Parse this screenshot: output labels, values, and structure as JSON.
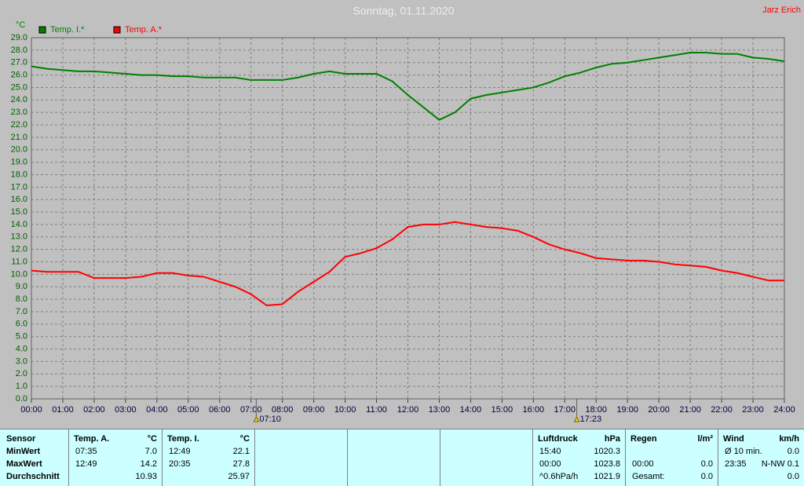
{
  "chart_data": {
    "type": "line",
    "title": "Sonntag, 01.11.2020",
    "author": "Jarz Erich",
    "y_label": "°C",
    "x": [
      0,
      0.5,
      1,
      1.5,
      2,
      2.5,
      3,
      3.5,
      4,
      4.5,
      5,
      5.5,
      6,
      6.5,
      7,
      7.5,
      8,
      8.5,
      9,
      9.5,
      10,
      10.5,
      11,
      11.5,
      12,
      12.5,
      13,
      13.5,
      14,
      14.5,
      15,
      15.5,
      16,
      16.5,
      17,
      17.5,
      18,
      18.5,
      19,
      19.5,
      20,
      20.5,
      21,
      21.5,
      22,
      22.5,
      23,
      23.5,
      24
    ],
    "series": [
      {
        "name": "Temp. I.*",
        "color": "#008000",
        "values": [
          26.7,
          26.5,
          26.4,
          26.3,
          26.3,
          26.2,
          26.1,
          26.0,
          26.0,
          25.9,
          25.9,
          25.8,
          25.8,
          25.8,
          25.6,
          25.6,
          25.6,
          25.8,
          26.1,
          26.3,
          26.1,
          26.1,
          26.1,
          25.5,
          24.4,
          23.4,
          22.4,
          23.0,
          24.1,
          24.4,
          24.6,
          24.8,
          25.0,
          25.4,
          25.9,
          26.2,
          26.6,
          26.9,
          27.0,
          27.2,
          27.4,
          27.6,
          27.8,
          27.8,
          27.7,
          27.7,
          27.4,
          27.3,
          27.1
        ]
      },
      {
        "name": "Temp. A.*",
        "color": "#ff0000",
        "values": [
          10.3,
          10.2,
          10.2,
          10.2,
          9.7,
          9.7,
          9.7,
          9.8,
          10.1,
          10.1,
          9.9,
          9.8,
          9.4,
          9.0,
          8.4,
          7.5,
          7.6,
          8.6,
          9.4,
          10.2,
          11.4,
          11.7,
          12.1,
          12.8,
          13.8,
          14.0,
          14.0,
          14.2,
          14.0,
          13.8,
          13.7,
          13.5,
          13.0,
          12.4,
          12.0,
          11.7,
          11.3,
          11.2,
          11.1,
          11.1,
          11.0,
          10.8,
          10.7,
          10.6,
          10.3,
          10.1,
          9.8,
          9.5,
          9.5
        ]
      }
    ],
    "xlim": [
      0,
      24
    ],
    "ylim": [
      0,
      29
    ],
    "grid": true,
    "xticks": [
      {
        "value": 0,
        "label": "00:00"
      },
      {
        "value": 1,
        "label": "01:00"
      },
      {
        "value": 2,
        "label": "02:00"
      },
      {
        "value": 3,
        "label": "03:00"
      },
      {
        "value": 4,
        "label": "04:00"
      },
      {
        "value": 5,
        "label": "05:00"
      },
      {
        "value": 6,
        "label": "06:00"
      },
      {
        "value": 7,
        "label": "07:00"
      },
      {
        "value": 8,
        "label": "08:00"
      },
      {
        "value": 9,
        "label": "09:00"
      },
      {
        "value": 10,
        "label": "10:00"
      },
      {
        "value": 11,
        "label": "11:00"
      },
      {
        "value": 12,
        "label": "12:00"
      },
      {
        "value": 13,
        "label": "13:00"
      },
      {
        "value": 14,
        "label": "14:00"
      },
      {
        "value": 15,
        "label": "15:00"
      },
      {
        "value": 16,
        "label": "16:00"
      },
      {
        "value": 17,
        "label": "17:00"
      },
      {
        "value": 18,
        "label": "18:00"
      },
      {
        "value": 19,
        "label": "19:00"
      },
      {
        "value": 20,
        "label": "20:00"
      },
      {
        "value": 21,
        "label": "21:00"
      },
      {
        "value": 22,
        "label": "22:00"
      },
      {
        "value": 23,
        "label": "23:00"
      },
      {
        "value": 24,
        "label": "24:00"
      }
    ],
    "yticks": [
      {
        "value": 0,
        "label": "0.0"
      },
      {
        "value": 1,
        "label": "1.0"
      },
      {
        "value": 2,
        "label": "2.0"
      },
      {
        "value": 3,
        "label": "3.0"
      },
      {
        "value": 4,
        "label": "4.0"
      },
      {
        "value": 5,
        "label": "5.0"
      },
      {
        "value": 6,
        "label": "6.0"
      },
      {
        "value": 7,
        "label": "7.0"
      },
      {
        "value": 8,
        "label": "8.0"
      },
      {
        "value": 9,
        "label": "9.0"
      },
      {
        "value": 10,
        "label": "10.0"
      },
      {
        "value": 11,
        "label": "11.0"
      },
      {
        "value": 12,
        "label": "12.0"
      },
      {
        "value": 13,
        "label": "13.0"
      },
      {
        "value": 14,
        "label": "14.0"
      },
      {
        "value": 15,
        "label": "15.0"
      },
      {
        "value": 16,
        "label": "16.0"
      },
      {
        "value": 17,
        "label": "17.0"
      },
      {
        "value": 18,
        "label": "18.0"
      },
      {
        "value": 19,
        "label": "19.0"
      },
      {
        "value": 20,
        "label": "20.0"
      },
      {
        "value": 21,
        "label": "21.0"
      },
      {
        "value": 22,
        "label": "22.0"
      },
      {
        "value": 23,
        "label": "23.0"
      },
      {
        "value": 24,
        "label": "24.0"
      },
      {
        "value": 25,
        "label": "25.0"
      },
      {
        "value": 26,
        "label": "26.0"
      },
      {
        "value": 27,
        "label": "27.0"
      },
      {
        "value": 28,
        "label": "28.0"
      },
      {
        "value": 29,
        "label": "29.0"
      }
    ],
    "annotations": [
      {
        "x": 7.1667,
        "label": "07:10"
      },
      {
        "x": 17.3833,
        "label": "17:23"
      }
    ]
  },
  "table": {
    "row_labels": [
      "Sensor",
      "MinWert",
      "MaxWert",
      "Durchschnitt"
    ],
    "blocks": [
      {
        "header": [
          "Temp. A.",
          "°C"
        ],
        "rows": [
          [
            "07:35",
            "7.0"
          ],
          [
            "12:49",
            "14.2"
          ],
          [
            null,
            "10.93"
          ]
        ]
      },
      {
        "header": [
          "Temp. I.",
          "°C"
        ],
        "rows": [
          [
            "12:49",
            "22.1"
          ],
          [
            "20:35",
            "27.8"
          ],
          [
            null,
            "25.97"
          ]
        ]
      },
      null,
      null,
      null,
      {
        "header": [
          "Luftdruck",
          "hPa"
        ],
        "rows": [
          [
            "15:40",
            "1020.3"
          ],
          [
            "00:00",
            "1023.8"
          ],
          [
            "^0.6hPa/h",
            "1021.9"
          ]
        ]
      },
      {
        "header": [
          "Regen",
          "l/m²"
        ],
        "rows": [
          [
            null,
            null
          ],
          [
            "00:00",
            "0.0"
          ],
          [
            "Gesamt:",
            "0.0"
          ]
        ]
      },
      {
        "header": [
          "Wind",
          "km/h"
        ],
        "rows": [
          [
            "Ø 10 min.",
            "0.0"
          ],
          [
            "23:35",
            "N-NW 0.1"
          ],
          [
            null,
            "0.0"
          ]
        ]
      }
    ]
  }
}
